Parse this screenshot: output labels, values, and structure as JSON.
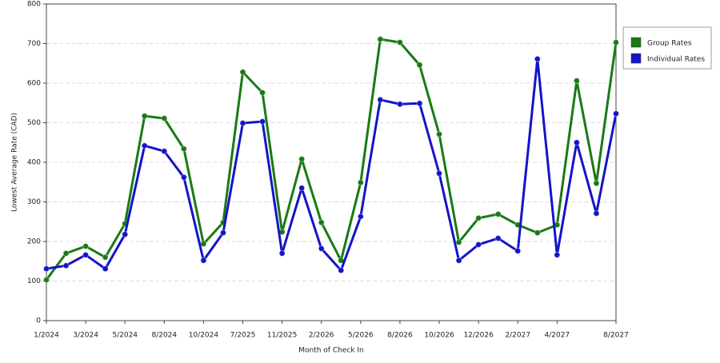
{
  "chart_data": {
    "type": "line",
    "x_label": "Month of Check In",
    "y_label": "Lowest Average Rate (CAD)",
    "categories": [
      "1/2024",
      null,
      "3/2024",
      null,
      "5/2024",
      null,
      "8/2024",
      null,
      "10/2024",
      null,
      "7/2025",
      null,
      "11/2025",
      null,
      "2/2026",
      null,
      "5/2026",
      null,
      "8/2026",
      null,
      "10/2026",
      null,
      "12/2026",
      null,
      "2/2027",
      null,
      "4/2027",
      null,
      null,
      "8/2027"
    ],
    "series": [
      {
        "name": "Group Rates",
        "color": "#1a7a14",
        "values": [
          103,
          170,
          188,
          160,
          245,
          517,
          511,
          434,
          194,
          248,
          628,
          576,
          224,
          408,
          248,
          152,
          349,
          711,
          703,
          646,
          471,
          198,
          259,
          269,
          242,
          222,
          242,
          606,
          347,
          703
        ]
      },
      {
        "name": "Individual Rates",
        "color": "#1414c8",
        "values": [
          131,
          139,
          166,
          131,
          218,
          442,
          428,
          362,
          152,
          222,
          499,
          503,
          170,
          335,
          182,
          127,
          263,
          558,
          547,
          549,
          372,
          152,
          192,
          208,
          176,
          661,
          166,
          450,
          271,
          523
        ]
      }
    ],
    "ylim": [
      0,
      800
    ],
    "yticks": [
      0,
      100,
      200,
      300,
      400,
      500,
      600,
      700,
      800
    ],
    "grid": true,
    "legend": "right"
  }
}
